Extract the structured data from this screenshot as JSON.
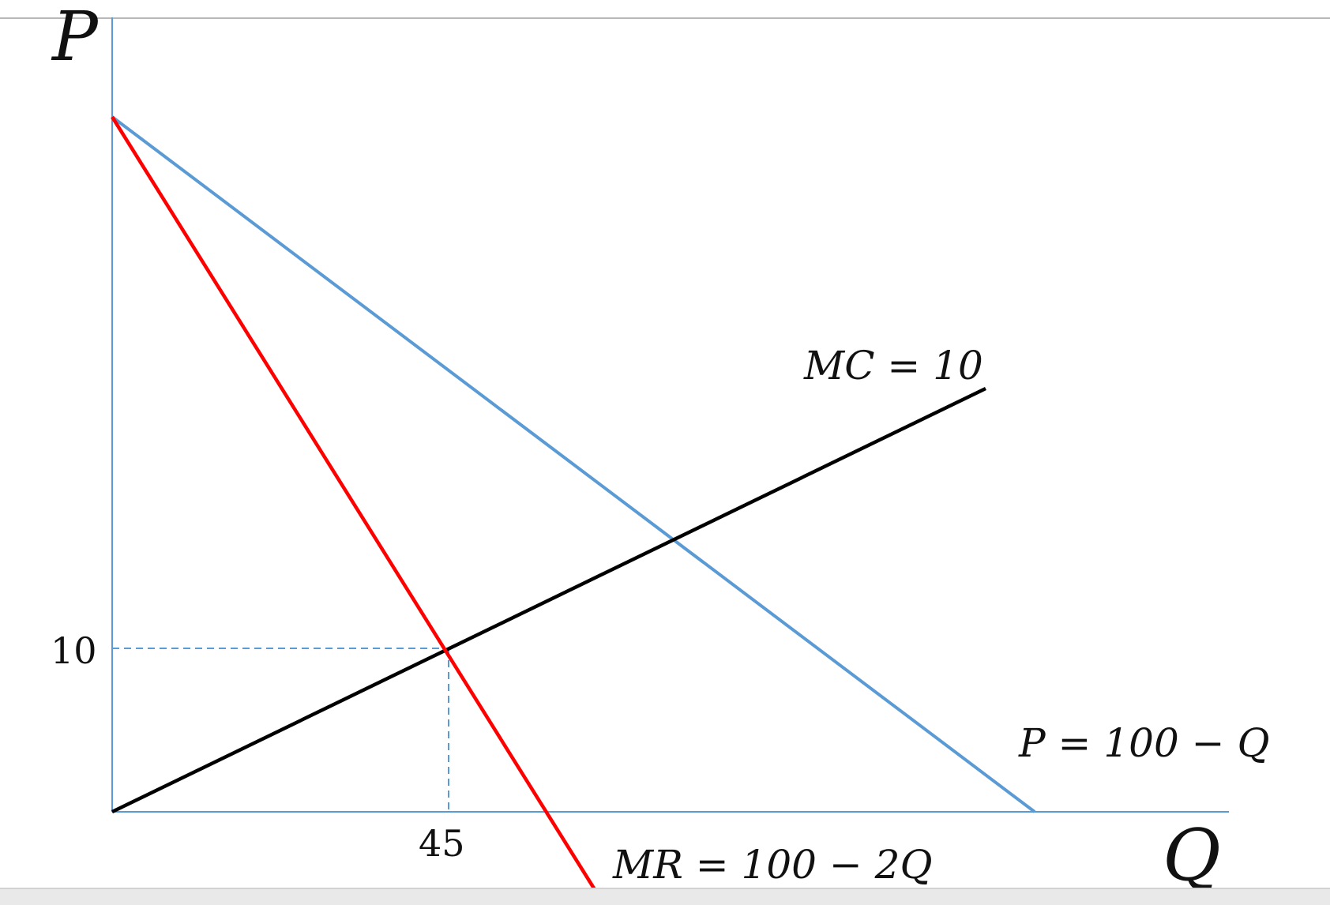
{
  "diagram": {
    "axis_labels": {
      "y": "P",
      "x": "Q"
    },
    "tick_labels": {
      "price": "10",
      "quantity": "45"
    },
    "curve_labels": {
      "mc": "MC = 10",
      "demand": "P = 100 − Q",
      "mr": "MR = 100 − 2Q"
    },
    "colors": {
      "axis": "#5b9bd5",
      "demand": "#5b9bd5",
      "mr": "#ff0000",
      "mc": "#000000",
      "guides": "#5b9bd5"
    }
  }
}
